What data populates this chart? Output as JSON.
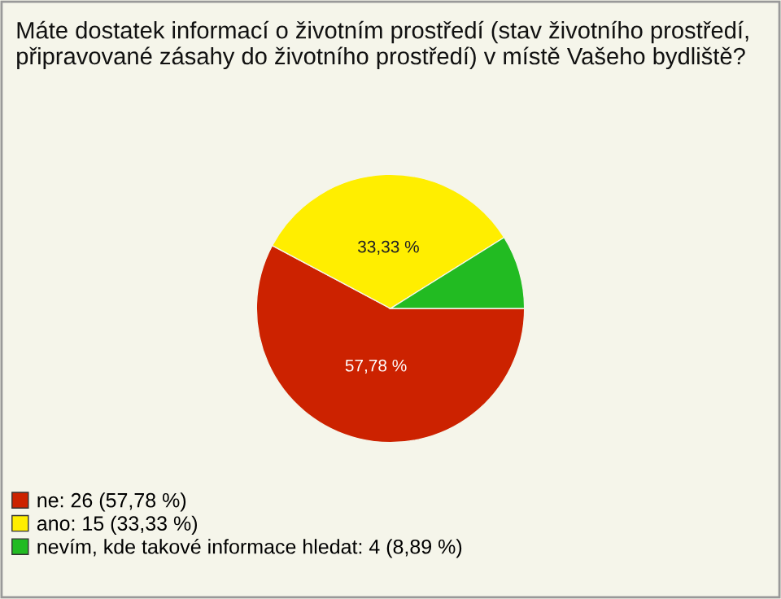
{
  "chart_data": {
    "type": "pie",
    "title": "Máte dostatek informací o životním prostředí (stav životního prostředí, připravované zásahy do životního prostředí) v místě Vašeho bydliště?",
    "categories": [
      "ne: 26 (57,78 %)",
      "ano: 15 (33,33 %)",
      "nevím, kde takové informace hledat: 4 (8,89 %)"
    ],
    "values": [
      57.78,
      33.33,
      8.89
    ],
    "colors": [
      "#cc2200",
      "#ffee00",
      "#22bb22"
    ],
    "value_labels": [
      "57,78 %",
      "33,33 %",
      null
    ],
    "legend": "bottom left"
  }
}
